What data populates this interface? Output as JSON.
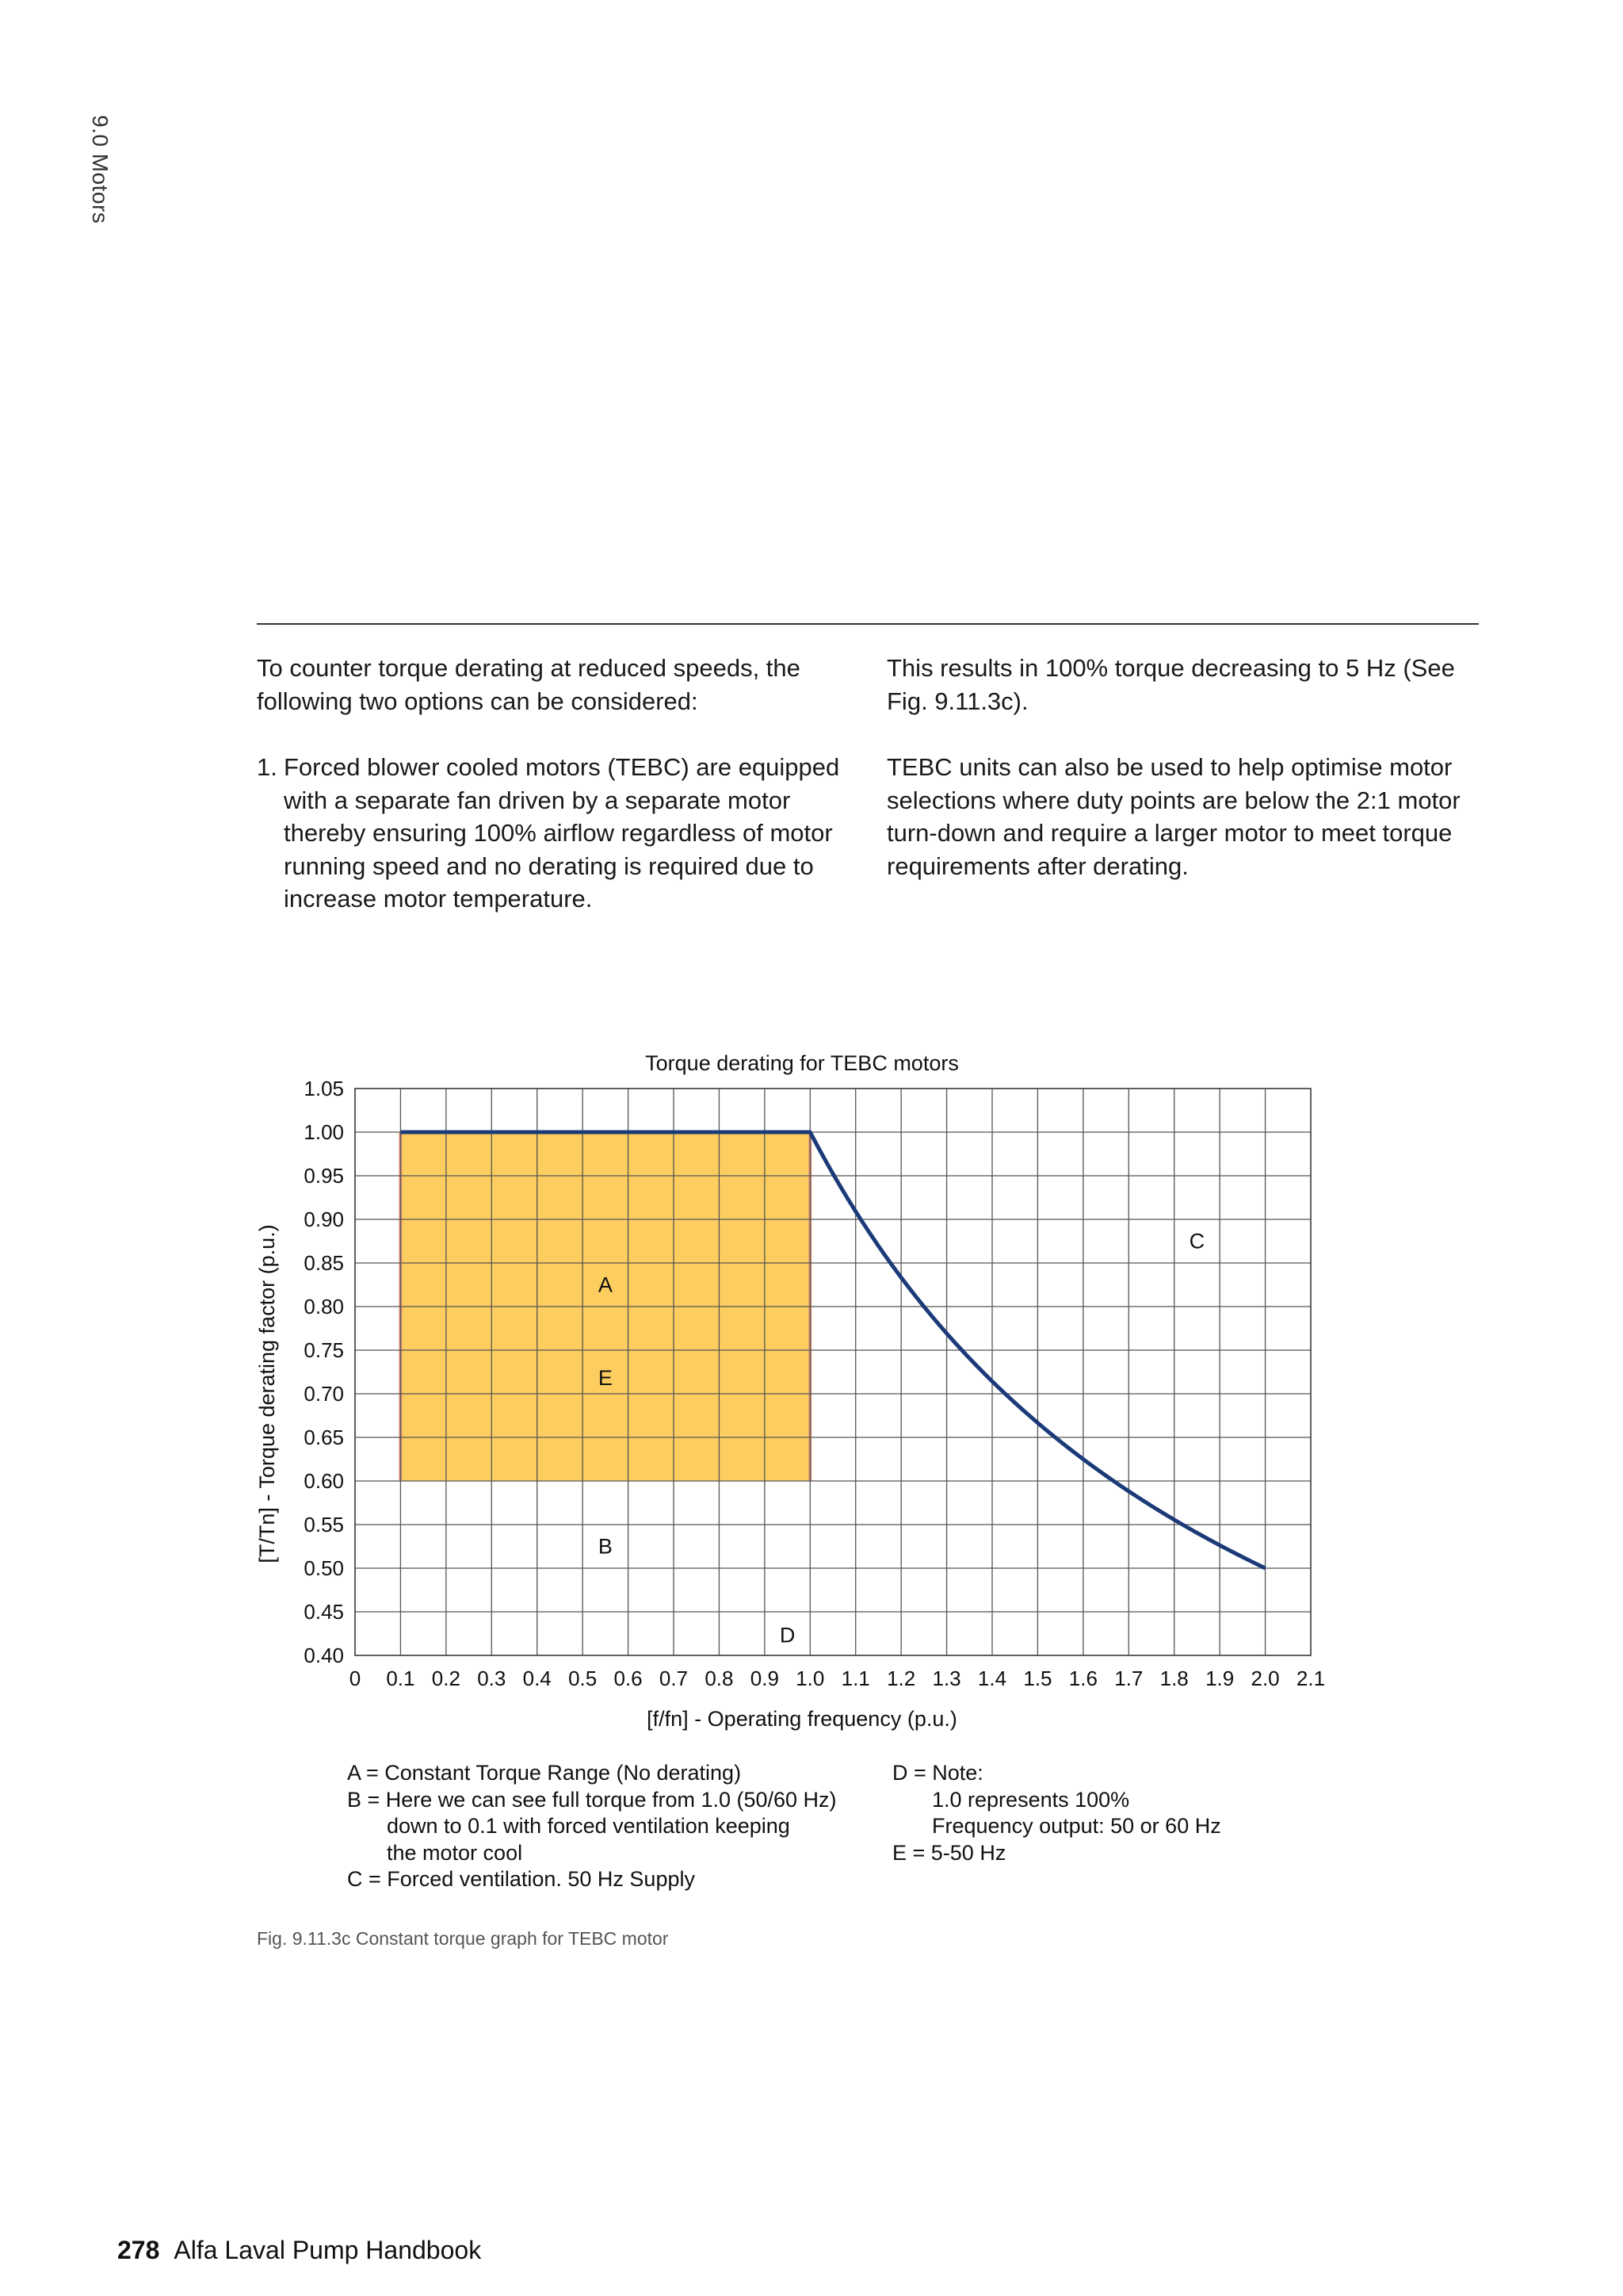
{
  "header": {
    "section_label": "9.0 Motors"
  },
  "body": {
    "left_intro": "To counter torque derating at reduced speeds, the following two options can be considered:",
    "list_item_1_number": "1.",
    "list_item_1_text": "Forced blower cooled motors (TEBC) are equipped with a separate fan driven by a separate motor thereby ensuring 100% airflow regardless of motor running speed and no derating is required due to increase motor temperature.",
    "right_para_1": "This results in 100% torque decreasing to 5 Hz (See Fig. 9.11.3c).",
    "right_para_2": "TEBC units can also be used to help optimise motor selections where duty points are below the 2:1 motor turn-down and require a larger motor to meet torque requirements after derating."
  },
  "chart_data": {
    "type": "line",
    "title": "Torque derating for TEBC motors",
    "xlabel": "[f/fn] - Operating frequency (p.u.)",
    "ylabel": "[T/Tn] - Torque derating factor (p.u.)",
    "xlim": [
      0,
      2.1
    ],
    "ylim": [
      0.4,
      1.05
    ],
    "x_ticks": [
      "0",
      "0.1",
      "0.2",
      "0.3",
      "0.4",
      "0.5",
      "0.6",
      "0.7",
      "0.8",
      "0.9",
      "1.0",
      "1.1",
      "1.2",
      "1.3",
      "1.4",
      "1.5",
      "1.6",
      "1.7",
      "1.8",
      "1.9",
      "2.0",
      "2.1"
    ],
    "y_ticks": [
      "0.40",
      "0.45",
      "0.50",
      "0.55",
      "0.60",
      "0.65",
      "0.70",
      "0.75",
      "0.80",
      "0.85",
      "0.90",
      "0.95",
      "1.00",
      "1.05"
    ],
    "grid": true,
    "series": [
      {
        "color": "#1b3a78",
        "x": [
          0.1,
          1.0,
          1.1,
          1.2,
          1.3,
          1.4,
          1.5,
          1.6,
          1.7,
          1.8,
          1.9,
          2.0
        ],
        "y": [
          1.0,
          1.0,
          0.909,
          0.833,
          0.769,
          0.714,
          0.667,
          0.625,
          0.588,
          0.556,
          0.526,
          0.5
        ]
      }
    ],
    "shaded_region": {
      "x": [
        0.1,
        1.0
      ],
      "y": [
        0.6,
        1.0
      ],
      "fill": "#fdcd60",
      "edge": "#e09478"
    },
    "annotations": [
      {
        "text": "A",
        "x": 0.55,
        "y": 0.825
      },
      {
        "text": "E",
        "x": 0.55,
        "y": 0.718
      },
      {
        "text": "B",
        "x": 0.55,
        "y": 0.525
      },
      {
        "text": "C",
        "x": 1.85,
        "y": 0.875
      },
      {
        "text": "D",
        "x": 0.95,
        "y": 0.423
      }
    ],
    "legend": {
      "left": [
        {
          "text": "A = Constant Torque Range (No derating)",
          "indent": false
        },
        {
          "text": "B = Here we can see full torque from 1.0 (50/60 Hz)",
          "indent": false
        },
        {
          "text": "down to 0.1 with forced ventilation keeping",
          "indent": true
        },
        {
          "text": "the motor cool",
          "indent": true
        },
        {
          "text": "C = Forced ventilation. 50 Hz Supply",
          "indent": false
        }
      ],
      "right": [
        {
          "text": "D = Note:",
          "indent": false
        },
        {
          "text": "1.0 represents 100%",
          "indent": true
        },
        {
          "text": "Frequency output: 50 or 60 Hz",
          "indent": true
        },
        {
          "text": "E = 5-50 Hz",
          "indent": false
        }
      ]
    }
  },
  "caption": "Fig. 9.11.3c Constant torque graph for TEBC motor",
  "footer": {
    "page_number": "278",
    "book_title": "Alfa Laval Pump Handbook"
  }
}
